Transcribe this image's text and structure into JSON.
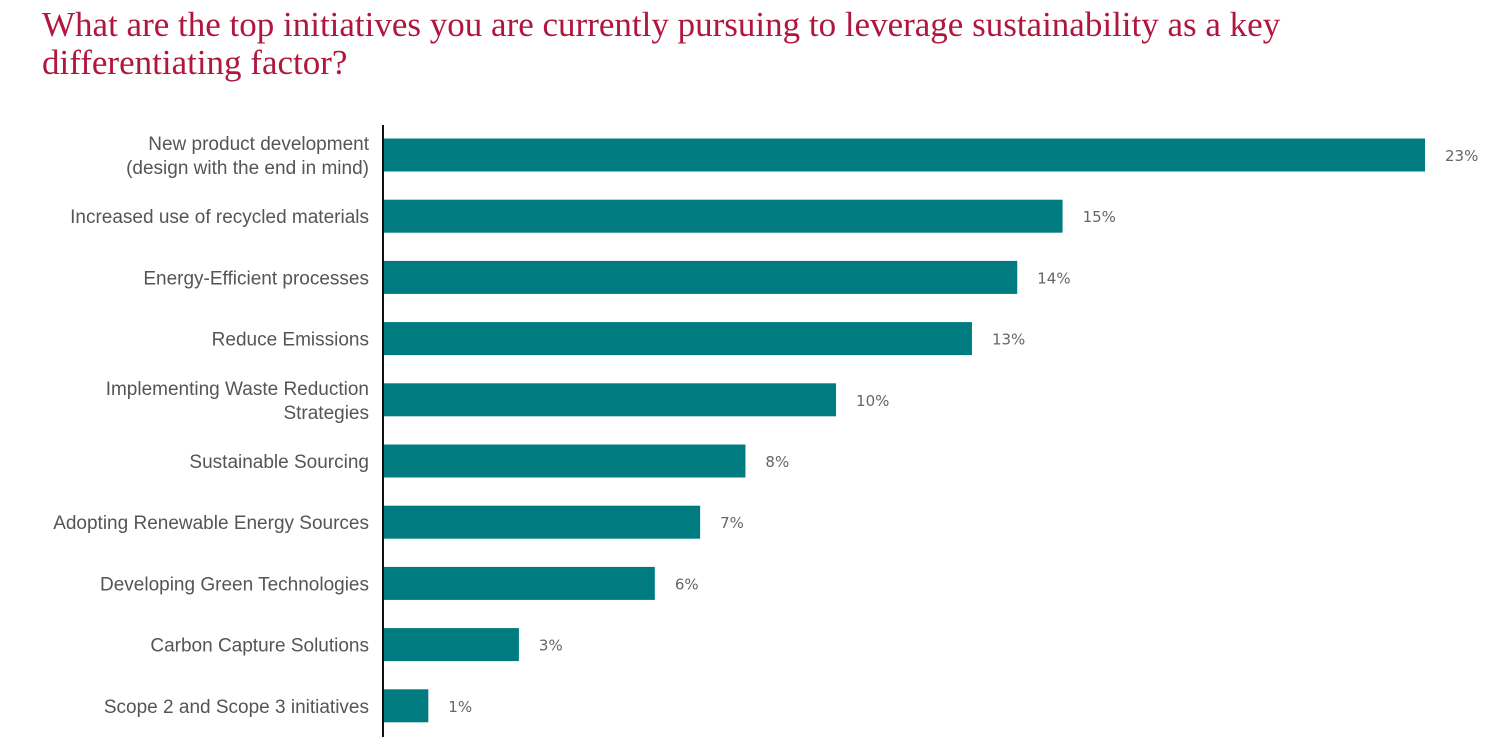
{
  "chart_data": {
    "type": "bar",
    "orientation": "horizontal",
    "title": "What are the top initiatives you are currently pursuing to leverage sustainability as a key differentiating factor?",
    "xlabel": "",
    "ylabel": "",
    "unit": "%",
    "xlim": [
      0,
      23
    ],
    "grid": false,
    "legend": "none",
    "bar_color": "#007b80",
    "title_color": "#b0163e",
    "categories": [
      [
        "New product development",
        "(design with the end in mind)"
      ],
      [
        "Increased use of recycled materials"
      ],
      [
        "Energy-Efficient processes"
      ],
      [
        "Reduce Emissions"
      ],
      [
        "Implementing Waste Reduction",
        "Strategies"
      ],
      [
        "Sustainable Sourcing"
      ],
      [
        "Adopting Renewable Energy Sources"
      ],
      [
        "Developing Green Technologies"
      ],
      [
        "Carbon Capture Solutions"
      ],
      [
        "Scope 2 and Scope 3 initiatives"
      ]
    ],
    "values": [
      23,
      15,
      14,
      13,
      10,
      8,
      7,
      6,
      3,
      1
    ],
    "value_labels": [
      "23%",
      "15%",
      "14%",
      "13%",
      "10%",
      "8%",
      "7%",
      "6%",
      "3%",
      "1%"
    ]
  }
}
